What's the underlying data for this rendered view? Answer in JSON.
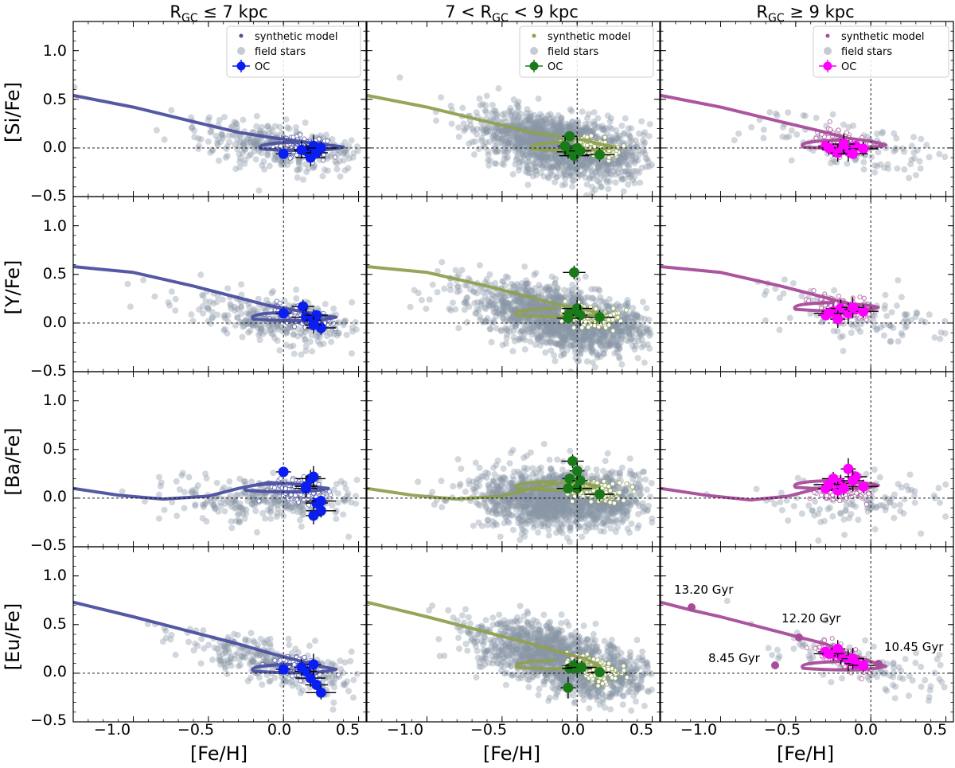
{
  "figure": {
    "column_titles": [
      {
        "pre": "R",
        "sub": "GC",
        "post": " ≤ 7 kpc"
      },
      {
        "pre": "7 < R",
        "sub": "GC",
        "post": " < 9 kpc"
      },
      {
        "pre": "R",
        "sub": "GC",
        "post": " ≥ 9 kpc"
      }
    ],
    "x_label": "[Fe/H]",
    "y_labels": [
      "[Si/Fe]",
      "[Y/Fe]",
      "[Ba/Fe]",
      "[Eu/Fe]"
    ],
    "x_ticks": [
      "−1.0",
      "−0.5",
      "0.0",
      "0.5"
    ],
    "y_ticks": [
      "−0.5",
      "0.0",
      "0.5",
      "1.0"
    ],
    "legend_entries": [
      "synthetic model",
      "field stars",
      "OC"
    ],
    "age_annotations": [
      "13.20 Gyr",
      "12.20 Gyr",
      "10.45 Gyr",
      "8.45 Gyr"
    ]
  },
  "chart_data": {
    "type": "scatter",
    "layout": "4 rows (elements) x 3 columns (Galactocentric radius bins)",
    "xlim": [
      -1.4,
      0.55
    ],
    "ylim": [
      -0.5,
      1.3
    ],
    "x_ticks": [
      -1.0,
      -0.5,
      0.0,
      0.5
    ],
    "y_ticks": [
      -0.5,
      0.0,
      0.5,
      1.0
    ],
    "reference_lines": {
      "x": 0.0,
      "y": 0.0,
      "style": "dashed"
    },
    "colors": {
      "field_stars": "#8a97a6",
      "bin_inner": "#4b50a0",
      "bin_middle": "#8fa050",
      "bin_outer": "#a74c99",
      "oc_inner": "#0a1ef0",
      "oc_middle": "#1a7a1a",
      "oc_outer": "#ff00ff"
    },
    "rows": [
      {
        "element": "Si",
        "model_tracks": [
          {
            "bin": "inner",
            "points": [
              [
                -1.4,
                0.54
              ],
              [
                -1.0,
                0.42
              ],
              [
                -0.6,
                0.27
              ],
              [
                -0.3,
                0.16
              ],
              [
                -0.1,
                0.11
              ],
              [
                0.05,
                0.08
              ],
              [
                0.25,
                0.04
              ],
              [
                0.4,
                0.01
              ]
            ]
          },
          {
            "bin": "middle",
            "points": [
              [
                -1.4,
                0.54
              ],
              [
                -1.0,
                0.42
              ],
              [
                -0.6,
                0.27
              ],
              [
                -0.3,
                0.16
              ],
              [
                -0.1,
                0.11
              ],
              [
                0.05,
                0.08
              ],
              [
                0.15,
                0.04
              ],
              [
                0.25,
                0.01
              ]
            ]
          },
          {
            "bin": "outer",
            "points": [
              [
                -1.4,
                0.54
              ],
              [
                -1.0,
                0.42
              ],
              [
                -0.6,
                0.27
              ],
              [
                -0.3,
                0.16
              ],
              [
                -0.15,
                0.1
              ],
              [
                0.0,
                0.07
              ],
              [
                0.1,
                0.03
              ]
            ]
          }
        ],
        "open_clusters": [
          {
            "bin": "inner",
            "points": [
              [
                0.0,
                -0.06
              ],
              [
                0.15,
                -0.03
              ],
              [
                0.18,
                -0.1
              ],
              [
                0.2,
                0.02
              ],
              [
                0.22,
                -0.05
              ],
              [
                0.25,
                0.0
              ],
              [
                0.12,
                -0.02
              ]
            ]
          },
          {
            "bin": "middle",
            "points": [
              [
                -0.05,
                0.12
              ],
              [
                -0.06,
                -0.04
              ],
              [
                -0.02,
                -0.08
              ],
              [
                0.0,
                0.0
              ],
              [
                0.02,
                -0.03
              ],
              [
                0.15,
                -0.07
              ],
              [
                -0.08,
                0.02
              ]
            ]
          },
          {
            "bin": "outer",
            "points": [
              [
                -0.3,
                0.02
              ],
              [
                -0.25,
                -0.02
              ],
              [
                -0.2,
                0.0
              ],
              [
                -0.15,
                -0.03
              ],
              [
                -0.1,
                0.02
              ],
              [
                -0.05,
                -0.01
              ],
              [
                -0.22,
                -0.05
              ],
              [
                -0.18,
                0.04
              ],
              [
                -0.12,
                -0.06
              ],
              [
                -0.28,
                0.0
              ]
            ]
          }
        ]
      },
      {
        "element": "Y",
        "model_tracks": [
          {
            "bin": "inner",
            "points": [
              [
                -1.4,
                0.58
              ],
              [
                -1.0,
                0.52
              ],
              [
                -0.6,
                0.38
              ],
              [
                -0.3,
                0.26
              ],
              [
                -0.1,
                0.18
              ],
              [
                0.05,
                0.14
              ],
              [
                0.25,
                0.08
              ],
              [
                0.35,
                0.06
              ]
            ]
          },
          {
            "bin": "middle",
            "points": [
              [
                -1.4,
                0.58
              ],
              [
                -1.0,
                0.52
              ],
              [
                -0.6,
                0.38
              ],
              [
                -0.3,
                0.26
              ],
              [
                -0.1,
                0.18
              ],
              [
                0.05,
                0.14
              ],
              [
                0.15,
                0.1
              ]
            ]
          },
          {
            "bin": "outer",
            "points": [
              [
                -1.4,
                0.58
              ],
              [
                -1.0,
                0.52
              ],
              [
                -0.6,
                0.38
              ],
              [
                -0.3,
                0.26
              ],
              [
                -0.15,
                0.2
              ],
              [
                0.0,
                0.18
              ],
              [
                0.05,
                0.16
              ]
            ]
          }
        ],
        "open_clusters": [
          {
            "bin": "inner",
            "points": [
              [
                0.0,
                0.1
              ],
              [
                0.13,
                0.17
              ],
              [
                0.15,
                0.06
              ],
              [
                0.2,
                0.03
              ],
              [
                0.22,
                0.08
              ],
              [
                0.25,
                -0.05
              ],
              [
                0.2,
                -0.02
              ]
            ]
          },
          {
            "bin": "middle",
            "points": [
              [
                -0.05,
                0.1
              ],
              [
                -0.02,
                0.52
              ],
              [
                0.0,
                0.15
              ],
              [
                0.02,
                0.08
              ],
              [
                -0.06,
                0.05
              ],
              [
                0.15,
                0.06
              ]
            ]
          },
          {
            "bin": "outer",
            "points": [
              [
                -0.3,
                0.08
              ],
              [
                -0.25,
                0.12
              ],
              [
                -0.2,
                0.15
              ],
              [
                -0.15,
                0.1
              ],
              [
                -0.1,
                0.14
              ],
              [
                -0.05,
                0.12
              ],
              [
                -0.22,
                0.04
              ],
              [
                -0.12,
                0.16
              ],
              [
                -0.28,
                0.1
              ]
            ]
          }
        ]
      },
      {
        "element": "Ba",
        "model_tracks": [
          {
            "bin": "inner",
            "points": [
              [
                -1.4,
                0.1
              ],
              [
                -1.1,
                0.03
              ],
              [
                -0.8,
                -0.01
              ],
              [
                -0.5,
                0.02
              ],
              [
                -0.3,
                0.1
              ],
              [
                -0.1,
                0.16
              ],
              [
                0.05,
                0.15
              ],
              [
                0.2,
                0.12
              ],
              [
                0.3,
                0.1
              ]
            ]
          },
          {
            "bin": "middle",
            "points": [
              [
                -1.4,
                0.1
              ],
              [
                -1.1,
                0.03
              ],
              [
                -0.8,
                -0.01
              ],
              [
                -0.5,
                0.02
              ],
              [
                -0.3,
                0.1
              ],
              [
                -0.1,
                0.16
              ],
              [
                0.05,
                0.15
              ],
              [
                0.15,
                0.12
              ]
            ]
          },
          {
            "bin": "outer",
            "points": [
              [
                -1.4,
                0.1
              ],
              [
                -1.1,
                0.03
              ],
              [
                -0.8,
                -0.02
              ],
              [
                -0.55,
                0.02
              ],
              [
                -0.35,
                0.1
              ],
              [
                -0.15,
                0.16
              ],
              [
                0.0,
                0.15
              ],
              [
                0.05,
                0.13
              ]
            ]
          }
        ],
        "open_clusters": [
          {
            "bin": "inner",
            "points": [
              [
                0.0,
                0.27
              ],
              [
                0.15,
                0.1
              ],
              [
                0.18,
                0.2
              ],
              [
                0.2,
                0.22
              ],
              [
                0.22,
                -0.05
              ],
              [
                0.25,
                -0.13
              ],
              [
                0.2,
                -0.18
              ],
              [
                0.15,
                0.12
              ],
              [
                0.25,
                -0.03
              ]
            ]
          },
          {
            "bin": "middle",
            "points": [
              [
                -0.05,
                0.2
              ],
              [
                -0.03,
                0.38
              ],
              [
                0.0,
                0.1
              ],
              [
                0.02,
                0.18
              ],
              [
                -0.06,
                0.1
              ],
              [
                0.15,
                0.04
              ],
              [
                0.0,
                0.28
              ]
            ]
          },
          {
            "bin": "outer",
            "points": [
              [
                -0.3,
                0.1
              ],
              [
                -0.25,
                0.2
              ],
              [
                -0.2,
                0.15
              ],
              [
                -0.15,
                0.3
              ],
              [
                -0.1,
                0.22
              ],
              [
                -0.05,
                0.12
              ],
              [
                -0.22,
                0.08
              ],
              [
                -0.12,
                0.18
              ],
              [
                -0.28,
                0.14
              ],
              [
                -0.18,
                0.1
              ]
            ]
          }
        ]
      },
      {
        "element": "Eu",
        "model_tracks": [
          {
            "bin": "inner",
            "points": [
              [
                -1.4,
                0.73
              ],
              [
                -1.0,
                0.58
              ],
              [
                -0.6,
                0.42
              ],
              [
                -0.3,
                0.3
              ],
              [
                -0.1,
                0.21
              ],
              [
                0.05,
                0.15
              ],
              [
                0.25,
                0.07
              ],
              [
                0.35,
                0.04
              ]
            ]
          },
          {
            "bin": "middle",
            "points": [
              [
                -1.4,
                0.73
              ],
              [
                -1.0,
                0.58
              ],
              [
                -0.6,
                0.42
              ],
              [
                -0.3,
                0.3
              ],
              [
                -0.1,
                0.21
              ],
              [
                0.05,
                0.15
              ],
              [
                0.15,
                0.08
              ]
            ]
          },
          {
            "bin": "outer",
            "points": [
              [
                -1.4,
                0.73
              ],
              [
                -1.2,
                0.65
              ],
              [
                -1.0,
                0.58
              ],
              [
                -0.6,
                0.42
              ],
              [
                -0.3,
                0.3
              ],
              [
                -0.15,
                0.2
              ],
              [
                0.0,
                0.12
              ],
              [
                0.1,
                0.07
              ]
            ]
          }
        ],
        "open_clusters": [
          {
            "bin": "inner",
            "points": [
              [
                0.0,
                0.04
              ],
              [
                0.15,
                0.02
              ],
              [
                0.18,
                -0.05
              ],
              [
                0.2,
                0.09
              ],
              [
                0.22,
                -0.12
              ],
              [
                0.25,
                -0.2
              ],
              [
                0.12,
                0.06
              ]
            ]
          },
          {
            "bin": "middle",
            "points": [
              [
                -0.05,
                0.05
              ],
              [
                -0.02,
                0.08
              ],
              [
                0.0,
                0.05
              ],
              [
                -0.06,
                -0.15
              ],
              [
                0.15,
                0.01
              ],
              [
                0.03,
                0.06
              ]
            ]
          },
          {
            "bin": "outer",
            "points": [
              [
                -0.3,
                0.22
              ],
              [
                -0.25,
                0.2
              ],
              [
                -0.2,
                0.18
              ],
              [
                -0.15,
                0.13
              ],
              [
                -0.1,
                0.1
              ],
              [
                -0.05,
                0.08
              ],
              [
                -0.22,
                0.25
              ],
              [
                -0.12,
                0.15
              ],
              [
                -0.28,
                0.2
              ]
            ]
          }
        ]
      }
    ]
  }
}
